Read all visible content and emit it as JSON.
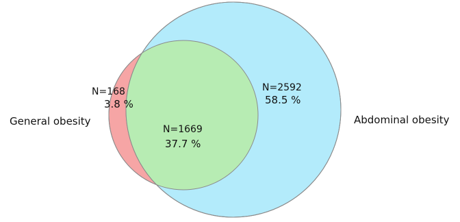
{
  "sets": [
    {
      "name": "General obesity",
      "color": "#f6a5a5"
    },
    {
      "name": "Abdominal obesity",
      "color": "#b3ebfb"
    }
  ],
  "intersection_color": "#b7ecb3",
  "regions": [
    {
      "label": "N=168",
      "percent": "3.8 %"
    },
    {
      "label": "N=2592",
      "percent": "58.5 %"
    },
    {
      "label": "N=1669",
      "percent": "37.7 %"
    }
  ]
}
